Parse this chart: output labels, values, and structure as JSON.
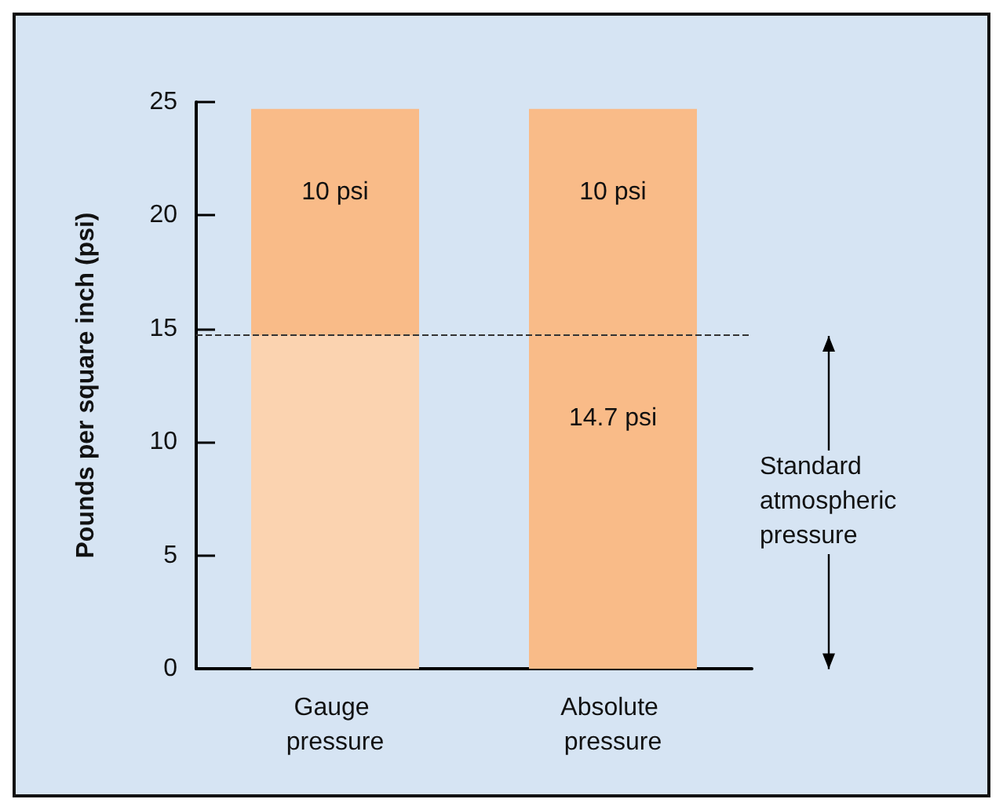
{
  "chart_data": {
    "type": "bar",
    "ylabel": "Pounds per square inch (psi)",
    "categories": [
      "Gauge pressure",
      "Absolute pressure"
    ],
    "stacked": true,
    "series": [
      {
        "colors": [
          "#fbd3b0",
          "#f9bb88"
        ],
        "values": [
          14.7,
          14.7
        ],
        "value_labels": [
          null,
          "14.7 psi"
        ]
      },
      {
        "color": "#f9bb88",
        "values": [
          10,
          10
        ],
        "value_labels": [
          "10 psi",
          "10 psi"
        ]
      }
    ],
    "ylim": [
      0,
      25
    ],
    "yticks": [
      0,
      5,
      10,
      15,
      20,
      25
    ],
    "grid": false,
    "ref_lines": [
      {
        "axis": "y",
        "value": 14.7,
        "label": "Standard atmospheric pressure",
        "color": "#333333",
        "line_style": "dashed"
      }
    ]
  }
}
